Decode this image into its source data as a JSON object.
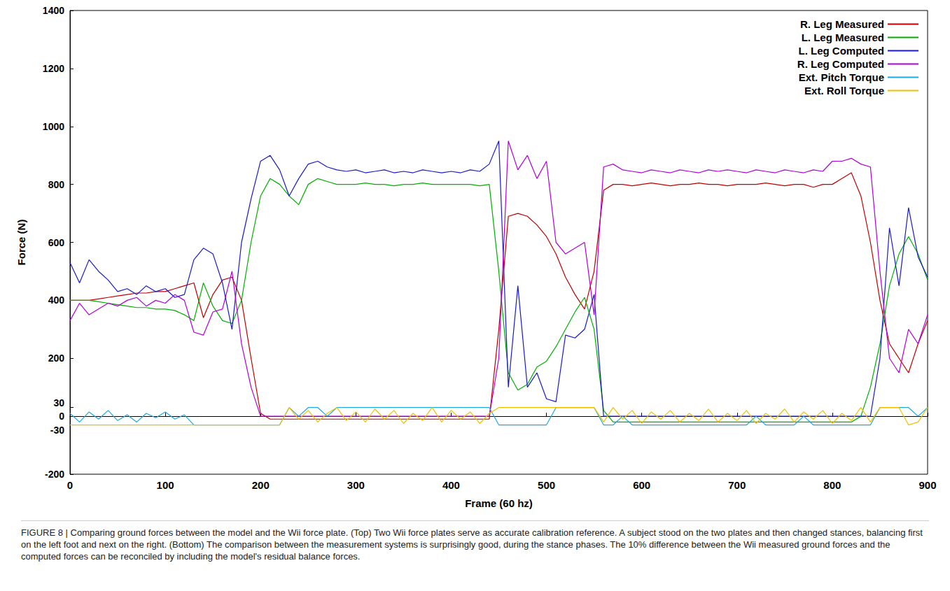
{
  "chart_data": {
    "type": "line",
    "caption": "FIGURE 8 | Comparing ground forces between the model and the Wii force plate. (Top) Two Wii force plates serve as accurate calibration reference. A subject stood on the two plates and then changed stances, balancing first on the left foot and next on the right. (Bottom) The comparison between the measurement systems is surprisingly good, during the stance phases. The 10% difference between the Wii measured ground forces and the computed forces can be reconciled by including the model's residual balance forces.",
    "x_label": "Frame (60 hz)",
    "y_label": "Force (N)",
    "x": [
      0,
      10,
      20,
      30,
      40,
      50,
      60,
      70,
      80,
      90,
      100,
      110,
      120,
      130,
      140,
      150,
      160,
      170,
      180,
      190,
      200,
      210,
      220,
      230,
      240,
      250,
      260,
      270,
      280,
      290,
      300,
      310,
      320,
      330,
      340,
      350,
      360,
      370,
      380,
      390,
      400,
      410,
      420,
      430,
      440,
      450,
      460,
      470,
      480,
      490,
      500,
      510,
      520,
      530,
      540,
      550,
      560,
      570,
      580,
      590,
      600,
      610,
      620,
      630,
      640,
      650,
      660,
      670,
      680,
      690,
      700,
      710,
      720,
      730,
      740,
      750,
      760,
      770,
      780,
      790,
      800,
      810,
      820,
      830,
      840,
      850,
      860,
      870,
      880,
      890,
      900
    ],
    "series": [
      {
        "name": "R. Leg Measured",
        "color": "#c00000",
        "values": [
          400,
          400,
          400,
          405,
          410,
          415,
          420,
          425,
          425,
          430,
          430,
          440,
          450,
          460,
          340,
          420,
          470,
          480,
          400,
          200,
          10,
          -10,
          -10,
          -10,
          -10,
          -10,
          -10,
          -10,
          -10,
          -10,
          -10,
          -10,
          -10,
          -10,
          -10,
          -10,
          -10,
          -10,
          -10,
          -10,
          -10,
          -10,
          -10,
          -10,
          -10,
          300,
          690,
          700,
          690,
          660,
          620,
          560,
          480,
          420,
          370,
          500,
          780,
          800,
          800,
          795,
          800,
          805,
          800,
          795,
          800,
          800,
          805,
          800,
          800,
          795,
          800,
          800,
          800,
          805,
          800,
          795,
          800,
          800,
          790,
          800,
          800,
          820,
          840,
          760,
          600,
          400,
          250,
          200,
          150,
          250,
          330
        ]
      },
      {
        "name": "L. Leg Measured",
        "color": "#00b000",
        "values": [
          400,
          400,
          400,
          395,
          390,
          385,
          380,
          375,
          375,
          370,
          370,
          365,
          350,
          330,
          460,
          380,
          330,
          320,
          400,
          600,
          760,
          820,
          800,
          760,
          730,
          800,
          820,
          810,
          800,
          800,
          800,
          805,
          800,
          800,
          795,
          800,
          800,
          805,
          800,
          800,
          800,
          800,
          800,
          795,
          800,
          500,
          150,
          90,
          110,
          170,
          190,
          240,
          300,
          360,
          410,
          300,
          20,
          -20,
          -20,
          -20,
          -20,
          -20,
          -20,
          -20,
          -20,
          -20,
          -20,
          -20,
          -20,
          -20,
          -20,
          -20,
          -20,
          -20,
          -20,
          -20,
          -20,
          -20,
          -20,
          -20,
          -20,
          -20,
          -20,
          0,
          100,
          250,
          450,
          560,
          620,
          560,
          470
        ]
      },
      {
        "name": "L. Leg Computed",
        "color": "#1a1ac8",
        "values": [
          530,
          460,
          540,
          500,
          470,
          430,
          440,
          420,
          450,
          430,
          440,
          410,
          420,
          540,
          580,
          560,
          460,
          300,
          600,
          750,
          880,
          900,
          850,
          760,
          820,
          870,
          880,
          860,
          850,
          845,
          850,
          840,
          845,
          850,
          840,
          845,
          840,
          850,
          845,
          840,
          845,
          840,
          850,
          845,
          870,
          950,
          100,
          450,
          100,
          150,
          60,
          50,
          280,
          270,
          300,
          420,
          0,
          0,
          0,
          0,
          0,
          0,
          0,
          0,
          0,
          0,
          0,
          0,
          0,
          0,
          0,
          0,
          0,
          0,
          0,
          0,
          0,
          0,
          0,
          0,
          0,
          0,
          0,
          0,
          0,
          200,
          650,
          450,
          720,
          550,
          480
        ]
      },
      {
        "name": "R. Leg Computed",
        "color": "#b000d8",
        "values": [
          330,
          390,
          350,
          370,
          390,
          380,
          400,
          410,
          380,
          400,
          390,
          420,
          400,
          290,
          280,
          360,
          370,
          500,
          250,
          100,
          0,
          0,
          0,
          0,
          0,
          0,
          0,
          0,
          0,
          0,
          0,
          0,
          0,
          0,
          0,
          0,
          0,
          0,
          0,
          0,
          0,
          0,
          0,
          0,
          0,
          200,
          950,
          850,
          900,
          820,
          880,
          600,
          560,
          580,
          600,
          350,
          860,
          870,
          850,
          845,
          840,
          850,
          845,
          840,
          850,
          845,
          840,
          850,
          845,
          850,
          845,
          840,
          850,
          845,
          840,
          850,
          845,
          840,
          850,
          845,
          880,
          880,
          890,
          870,
          860,
          500,
          200,
          150,
          300,
          250,
          350
        ]
      },
      {
        "name": "Ext. Pitch Torque",
        "color": "#1ea8e0",
        "values": [
          10,
          -20,
          15,
          -10,
          20,
          -15,
          5,
          -20,
          10,
          -5,
          15,
          -10,
          5,
          -30,
          -30,
          -30,
          -30,
          -30,
          -30,
          -30,
          -30,
          -30,
          -30,
          30,
          0,
          30,
          30,
          0,
          30,
          30,
          30,
          30,
          30,
          30,
          30,
          30,
          30,
          30,
          30,
          30,
          30,
          30,
          30,
          30,
          30,
          -30,
          -30,
          -30,
          -30,
          -30,
          -30,
          30,
          30,
          30,
          30,
          30,
          -30,
          -30,
          0,
          -30,
          -30,
          -30,
          -30,
          -30,
          -30,
          -30,
          -30,
          -30,
          -30,
          -30,
          -30,
          -30,
          0,
          -30,
          -30,
          -30,
          -30,
          0,
          -30,
          -30,
          -30,
          -30,
          -30,
          -30,
          -30,
          30,
          30,
          30,
          30,
          0,
          30
        ]
      },
      {
        "name": "Ext. Roll Torque",
        "color": "#f0c000",
        "values": [
          -30,
          -30,
          -30,
          -30,
          -30,
          -30,
          -30,
          -30,
          -30,
          -30,
          -30,
          -30,
          -30,
          -30,
          -30,
          -30,
          -30,
          -30,
          -30,
          -30,
          -30,
          -30,
          -30,
          30,
          -10,
          20,
          -20,
          10,
          30,
          -15,
          15,
          -20,
          25,
          -10,
          20,
          -25,
          10,
          -15,
          30,
          -20,
          20,
          -10,
          15,
          -25,
          10,
          30,
          30,
          30,
          30,
          30,
          30,
          30,
          30,
          30,
          30,
          30,
          -20,
          30,
          -10,
          20,
          -25,
          15,
          -10,
          20,
          -20,
          10,
          -15,
          25,
          -20,
          10,
          -15,
          20,
          -25,
          10,
          -10,
          25,
          -20,
          15,
          -10,
          20,
          -25,
          10,
          -15,
          30,
          -20,
          30,
          30,
          30,
          -30,
          -20,
          30
        ]
      }
    ],
    "xlim": [
      0,
      900
    ],
    "xticks": [
      0,
      100,
      200,
      300,
      400,
      500,
      600,
      700,
      800,
      900
    ],
    "ylim": [
      -200,
      1400
    ],
    "yticks": [
      -200,
      -30,
      0,
      30,
      200,
      400,
      600,
      800,
      1000,
      1200,
      1400
    ],
    "grid": false,
    "legend": "upper right"
  }
}
